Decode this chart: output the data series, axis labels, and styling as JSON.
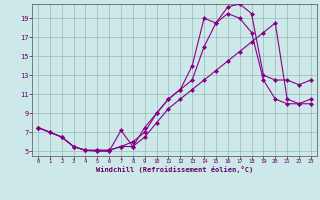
{
  "bg_color": "#cce8e8",
  "line_color": "#880088",
  "grid_color": "#99bbbb",
  "xlabel": "Windchill (Refroidissement éolien,°C)",
  "xlabel_color": "#660066",
  "tick_color": "#660066",
  "axis_color": "#666666",
  "xlim": [
    -0.5,
    23.5
  ],
  "ylim": [
    4.5,
    20.5
  ],
  "xticks": [
    0,
    1,
    2,
    3,
    4,
    5,
    6,
    7,
    8,
    9,
    10,
    11,
    12,
    13,
    14,
    15,
    16,
    17,
    18,
    19,
    20,
    21,
    22,
    23
  ],
  "yticks": [
    5,
    7,
    9,
    11,
    13,
    15,
    17,
    19
  ],
  "line1_x": [
    0,
    1,
    2,
    3,
    4,
    5,
    6,
    7,
    8,
    9,
    10,
    11,
    12,
    13,
    14,
    15,
    16,
    17,
    18,
    19,
    20,
    21,
    22,
    23
  ],
  "line1_y": [
    7.5,
    7.0,
    6.5,
    5.5,
    5.1,
    5.0,
    5.0,
    7.2,
    5.5,
    7.5,
    9.0,
    10.5,
    11.5,
    14.0,
    19.0,
    18.5,
    19.5,
    19.0,
    17.5,
    12.5,
    10.5,
    10.0,
    10.0,
    10.0
  ],
  "line2_x": [
    0,
    1,
    2,
    3,
    4,
    5,
    6,
    7,
    8,
    9,
    10,
    11,
    12,
    13,
    14,
    15,
    16,
    17,
    18,
    19,
    20,
    21,
    22,
    23
  ],
  "line2_y": [
    7.5,
    7.0,
    6.5,
    5.5,
    5.1,
    5.1,
    5.1,
    5.5,
    6.0,
    7.0,
    9.0,
    10.5,
    11.5,
    12.5,
    16.0,
    18.5,
    20.2,
    20.5,
    19.5,
    13.0,
    12.5,
    12.5,
    12.0,
    12.5
  ],
  "line3_x": [
    0,
    2,
    3,
    4,
    5,
    6,
    7,
    8,
    9,
    10,
    11,
    12,
    13,
    14,
    15,
    16,
    17,
    18,
    19,
    20,
    21,
    22,
    23
  ],
  "line3_y": [
    7.5,
    6.5,
    5.5,
    5.1,
    5.1,
    5.1,
    5.5,
    5.5,
    6.5,
    8.0,
    9.5,
    10.5,
    11.5,
    12.5,
    13.5,
    14.5,
    15.5,
    16.5,
    17.5,
    18.5,
    10.5,
    10.0,
    10.5
  ]
}
